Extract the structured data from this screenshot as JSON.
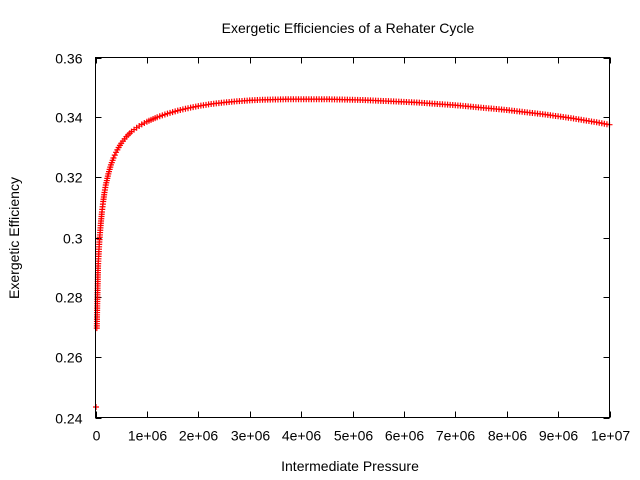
{
  "chart_data": {
    "type": "scatter",
    "title": "Exergetic Efficiencies of a Rehater Cycle",
    "xlabel": "Intermediate Pressure",
    "ylabel": "Exergetic Efficiency",
    "xlim": [
      0,
      10000000
    ],
    "ylim": [
      0.24,
      0.36
    ],
    "xticks": [
      0,
      1000000,
      2000000,
      3000000,
      4000000,
      5000000,
      6000000,
      7000000,
      8000000,
      9000000,
      10000000
    ],
    "xtick_labels": [
      "0",
      "1e+06",
      "2e+06",
      "3e+06",
      "4e+06",
      "5e+06",
      "6e+06",
      "7e+06",
      "8e+06",
      "9e+06",
      "1e+07"
    ],
    "yticks": [
      0.24,
      0.26,
      0.28,
      0.3,
      0.32,
      0.34,
      0.36
    ],
    "ytick_labels": [
      "0.24",
      "0.26",
      "0.28",
      "0.3",
      "0.32",
      "0.34",
      "0.36"
    ],
    "grid": false,
    "legend": "none",
    "marker": "plus",
    "color": "#ff0000",
    "series": [
      {
        "x": [
          10000,
          25000,
          50000,
          75000,
          100000,
          125000,
          150000,
          175000,
          200000,
          250000,
          300000,
          350000,
          400000,
          450000,
          500000,
          600000,
          700000,
          800000,
          900000,
          1000000,
          1200000,
          1400000,
          1600000,
          1800000,
          2000000,
          2250000,
          2500000,
          2750000,
          3000000,
          3250000,
          3500000,
          3750000,
          4000000,
          4250000,
          4500000,
          4750000,
          5000000,
          5250000,
          5500000,
          5750000,
          6000000,
          6250000,
          6500000,
          6750000,
          7000000,
          7250000,
          7500000,
          7750000,
          8000000,
          8250000,
          8500000,
          8750000,
          9000000,
          9250000,
          9500000,
          9750000,
          10000000
        ],
        "y": [
          0.2435,
          0.2698,
          0.2905,
          0.2985,
          0.304,
          0.3085,
          0.312,
          0.315,
          0.3175,
          0.3212,
          0.3242,
          0.3265,
          0.3284,
          0.33,
          0.3314,
          0.3336,
          0.3353,
          0.3366,
          0.3377,
          0.3386,
          0.3401,
          0.3413,
          0.3423,
          0.3431,
          0.3438,
          0.3445,
          0.345,
          0.3454,
          0.3457,
          0.3459,
          0.346,
          0.3461,
          0.3461,
          0.3461,
          0.3461,
          0.346,
          0.3459,
          0.3458,
          0.3456,
          0.3454,
          0.3452,
          0.345,
          0.3447,
          0.3444,
          0.3441,
          0.3437,
          0.3433,
          0.3429,
          0.3425,
          0.342,
          0.3415,
          0.341,
          0.3404,
          0.3398,
          0.3391,
          0.3384,
          0.3376
        ]
      }
    ]
  }
}
